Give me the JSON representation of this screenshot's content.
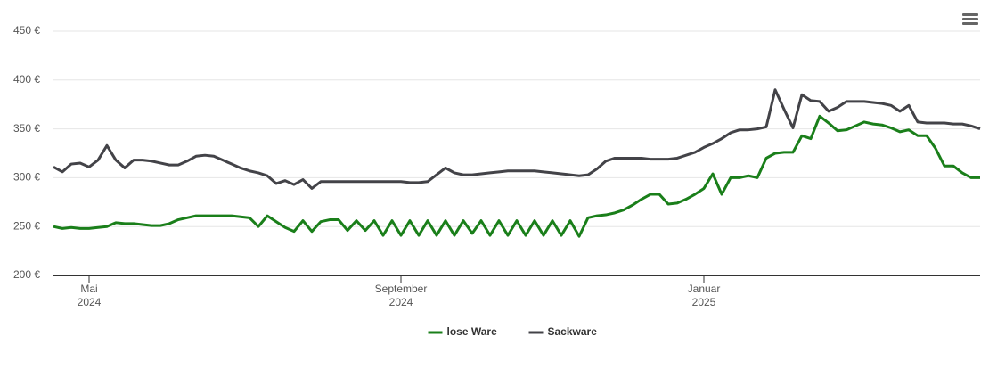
{
  "chart_data": {
    "type": "line",
    "categories": [
      null,
      null,
      null,
      null,
      "Mai\n2024",
      null,
      null,
      null,
      null,
      null,
      null,
      null,
      null,
      null,
      null,
      null,
      null,
      null,
      null,
      null,
      null,
      null,
      null,
      null,
      null,
      null,
      null,
      null,
      null,
      null,
      null,
      null,
      null,
      null,
      null,
      null,
      null,
      null,
      null,
      "September\n2024",
      null,
      null,
      null,
      null,
      null,
      null,
      null,
      null,
      null,
      null,
      null,
      null,
      null,
      null,
      null,
      null,
      null,
      null,
      null,
      null,
      null,
      null,
      null,
      null,
      null,
      null,
      null,
      null,
      null,
      null,
      null,
      null,
      null,
      "Januar\n2025",
      null,
      null,
      null,
      null,
      null,
      null,
      null,
      null,
      null,
      null,
      null,
      null,
      null,
      null,
      null,
      null,
      null,
      null,
      null,
      null,
      null,
      null,
      null,
      null,
      null,
      null,
      null,
      null,
      null,
      null,
      null
    ],
    "series": [
      {
        "name": "lose Ware",
        "color": "#1a7f1a",
        "values": [
          250,
          248,
          249,
          248,
          248,
          249,
          250,
          254,
          253,
          253,
          252,
          251,
          251,
          253,
          257,
          259,
          261,
          261,
          261,
          261,
          261,
          260,
          259,
          250,
          261,
          255,
          249,
          245,
          256,
          245,
          255,
          257,
          257,
          246,
          256,
          246,
          256,
          241,
          256,
          241,
          256,
          241,
          256,
          241,
          256,
          241,
          256,
          243,
          256,
          241,
          256,
          241,
          256,
          241,
          256,
          241,
          256,
          241,
          256,
          240,
          259,
          261,
          262,
          264,
          267,
          272,
          278,
          283,
          283,
          273,
          274,
          278,
          283,
          289,
          304,
          283,
          300,
          300,
          302,
          300,
          320,
          325,
          326,
          326,
          343,
          340,
          363,
          356,
          348,
          349,
          353,
          357,
          355,
          354,
          351,
          347,
          349,
          343,
          343,
          330,
          312,
          312,
          305,
          300,
          300
        ]
      },
      {
        "name": "Sackware",
        "color": "#434348",
        "values": [
          311,
          306,
          314,
          315,
          311,
          318,
          333,
          318,
          310,
          318,
          318,
          317,
          315,
          313,
          313,
          317,
          322,
          323,
          322,
          318,
          314,
          310,
          307,
          305,
          302,
          294,
          297,
          293,
          298,
          289,
          296,
          296,
          296,
          296,
          296,
          296,
          296,
          296,
          296,
          296,
          295,
          295,
          296,
          303,
          310,
          305,
          303,
          303,
          304,
          305,
          306,
          307,
          307,
          307,
          307,
          306,
          305,
          304,
          303,
          302,
          303,
          309,
          317,
          320,
          320,
          320,
          320,
          319,
          319,
          319,
          320,
          323,
          326,
          331,
          335,
          340,
          346,
          349,
          349,
          350,
          352,
          390,
          370,
          351,
          385,
          379,
          378,
          368,
          372,
          378,
          378,
          378,
          377,
          376,
          374,
          368,
          374,
          357,
          356,
          356,
          356,
          355,
          355,
          353,
          350
        ]
      }
    ],
    "ylim": [
      200,
      450
    ],
    "yticks": [
      {
        "value": 200,
        "label": "200 €"
      },
      {
        "value": 250,
        "label": "250 €"
      },
      {
        "value": 300,
        "label": "300 €"
      },
      {
        "value": 350,
        "label": "350 €"
      },
      {
        "value": 400,
        "label": "400 €"
      },
      {
        "value": 450,
        "label": "450 €"
      }
    ],
    "grid": true,
    "legend": "bottom"
  }
}
